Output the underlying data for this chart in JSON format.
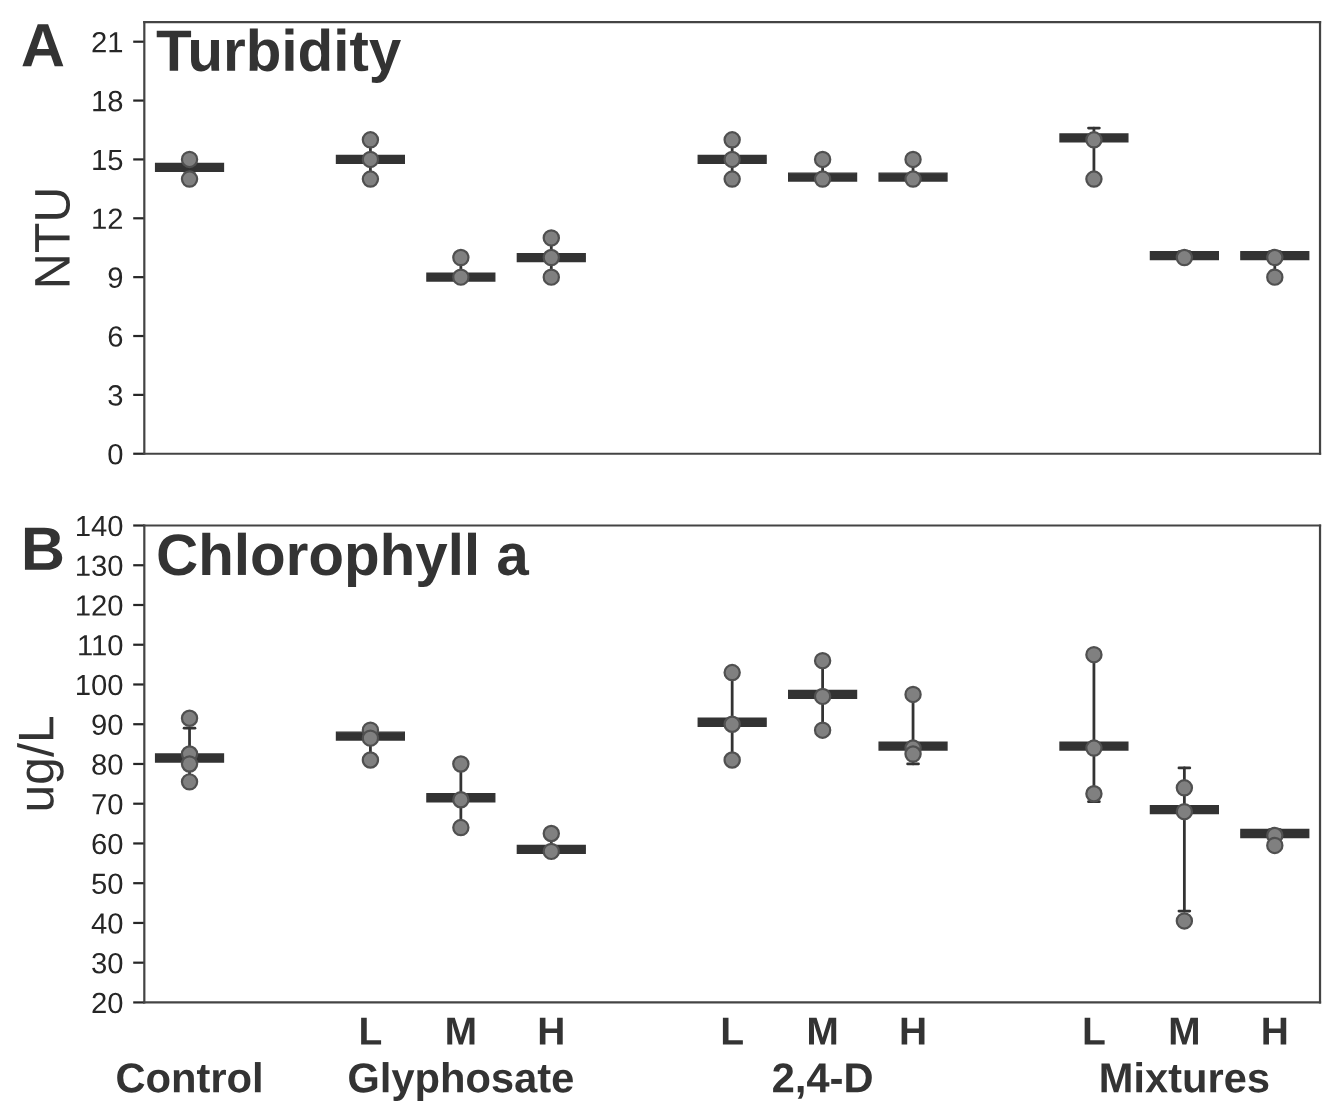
{
  "chart_data": [
    {
      "type": "box",
      "title": "Turbidity",
      "ylabel": "NTU",
      "annotations": [
        "A"
      ],
      "categories": [
        null,
        null,
        null,
        null,
        null,
        null,
        null,
        null,
        null,
        null,
        null,
        null,
        null
      ],
      "ylim": [
        0,
        22
      ],
      "yticks": [
        0,
        3,
        6,
        9,
        12,
        15,
        18,
        21
      ],
      "tick_labels": "y",
      "grid": false,
      "legend": false,
      "series": [
        {
          "color": "#333333",
          "boxes": [
            {
              "low": 14.4,
              "q1": 14.4,
              "median": 14.6,
              "q3": 14.8,
              "high": 14.8
            },
            null,
            {
              "low": 14,
              "q1": 14.8,
              "median": 15,
              "q3": 15.2,
              "high": 16
            },
            {
              "low": 9,
              "q1": 8.8,
              "median": 9,
              "q3": 9.2,
              "high": 10
            },
            {
              "low": 9,
              "q1": 9.8,
              "median": 10,
              "q3": 10.2,
              "high": 11
            },
            null,
            {
              "low": 14,
              "q1": 14.8,
              "median": 15,
              "q3": 15.2,
              "high": 16
            },
            {
              "low": 14,
              "q1": 13.9,
              "median": 14.1,
              "q3": 14.3,
              "high": 15
            },
            {
              "low": 14,
              "q1": 13.9,
              "median": 14.1,
              "q3": 14.3,
              "high": 15
            },
            null,
            {
              "low": 14,
              "q1": 15.9,
              "median": 16.1,
              "q3": 16.3,
              "high": 16.6
            },
            {
              "low": 9.9,
              "q1": 9.9,
              "median": 10.1,
              "q3": 10.3,
              "high": 10.3
            },
            {
              "low": 9,
              "q1": 9.9,
              "median": 10.1,
              "q3": 10.3,
              "high": 10.3
            }
          ]
        },
        {
          "type": "scatter",
          "color": "#808080",
          "marker": "circle",
          "values": [
            15,
            null,
            16,
            10,
            11,
            null,
            16,
            15,
            15,
            null,
            16,
            10,
            10
          ]
        },
        {
          "type": "scatter",
          "color": "#808080",
          "marker": "circle",
          "values": [
            14,
            null,
            15,
            9,
            10,
            null,
            15,
            14,
            14,
            null,
            14,
            null,
            9
          ]
        },
        {
          "type": "scatter",
          "color": "#808080",
          "marker": "circle",
          "values": [
            null,
            null,
            14,
            null,
            9,
            null,
            14,
            null,
            null,
            null,
            null,
            null,
            null
          ]
        }
      ]
    },
    {
      "type": "box",
      "title": "Chlorophyll a",
      "ylabel": "ug/L",
      "annotations": [
        "B",
        "Control",
        "Glyphosate",
        "2,4-D",
        "Mixtures"
      ],
      "categories": [
        null,
        null,
        "L",
        "M",
        "H",
        null,
        "L",
        "M",
        "H",
        null,
        "L",
        "M",
        "H"
      ],
      "ylim": [
        20,
        140
      ],
      "yticks": [
        20,
        30,
        40,
        50,
        60,
        70,
        80,
        90,
        100,
        110,
        120,
        130,
        140
      ],
      "grid": false,
      "legend": false,
      "series": [
        {
          "color": "#333333",
          "boxes": [
            {
              "low": 76,
              "q1": 80.5,
              "median": 81.5,
              "q3": 82.5,
              "high": 89
            },
            null,
            {
              "low": 81,
              "q1": 86,
              "median": 87,
              "q3": 88,
              "high": 88.5
            },
            {
              "low": 64,
              "q1": 70.5,
              "median": 71.5,
              "q3": 72.5,
              "high": 80
            },
            {
              "low": 58,
              "q1": 57.5,
              "median": 58.5,
              "q3": 59.5,
              "high": 62
            },
            null,
            {
              "low": 81,
              "q1": 89.5,
              "median": 90.5,
              "q3": 91.5,
              "high": 103
            },
            {
              "low": 88.5,
              "q1": 96.5,
              "median": 97.5,
              "q3": 98.5,
              "high": 106
            },
            {
              "low": 80,
              "q1": 83.5,
              "median": 84.5,
              "q3": 85.5,
              "high": 97.5
            },
            null,
            {
              "low": 70.5,
              "q1": 83.5,
              "median": 84.5,
              "q3": 85.5,
              "high": 107
            },
            {
              "low": 43,
              "q1": 67.5,
              "median": 68.5,
              "q3": 69.5,
              "high": 79
            },
            {
              "low": 61.5,
              "q1": 61.5,
              "median": 62.5,
              "q3": 63.5,
              "high": 63.5
            }
          ]
        },
        {
          "type": "scatter",
          "color": "#808080",
          "marker": "circle",
          "values": [
            91.5,
            null,
            88.5,
            80,
            62.5,
            null,
            103,
            106,
            97.5,
            null,
            107.5,
            74,
            62
          ]
        },
        {
          "type": "scatter",
          "color": "#808080",
          "marker": "circle",
          "values": [
            82.5,
            null,
            86.5,
            71,
            58,
            null,
            90,
            97,
            84,
            null,
            84,
            68,
            59.5
          ]
        },
        {
          "type": "scatter",
          "color": "#808080",
          "marker": "circle",
          "values": [
            80,
            null,
            81,
            64,
            null,
            null,
            81,
            88.5,
            82.5,
            null,
            72.5,
            40.5,
            null
          ]
        },
        {
          "type": "scatter",
          "color": "#808080",
          "marker": "circle",
          "values": [
            75.5,
            null,
            null,
            null,
            null,
            null,
            null,
            null,
            null,
            null,
            null,
            null,
            null
          ]
        }
      ]
    }
  ]
}
